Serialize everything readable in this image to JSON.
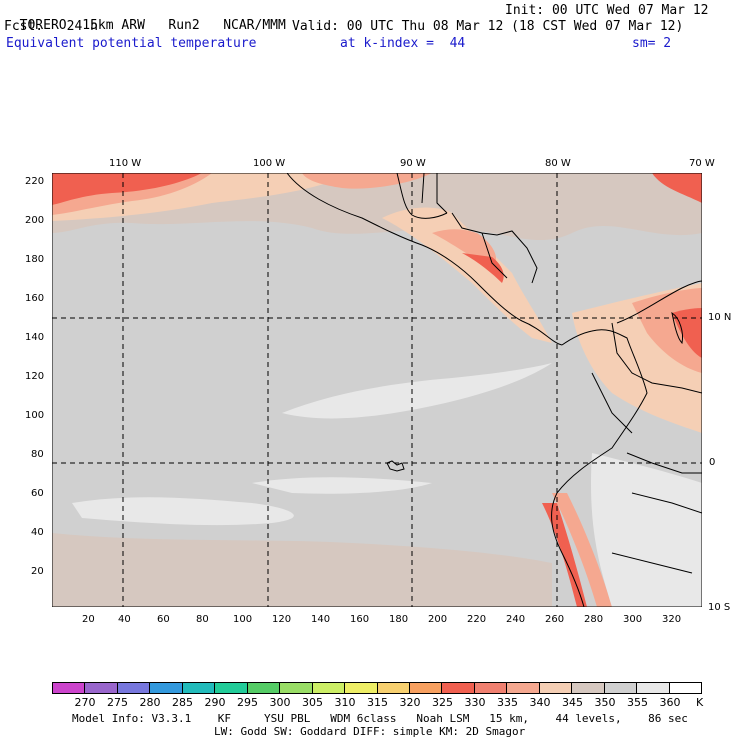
{
  "header": {
    "model": "TORERO",
    "resolution": "15km ARW",
    "run": "Run2",
    "org": "NCAR/MMM",
    "init": "Init: 00 UTC Wed 07 Mar 12",
    "fcst_label": "Fcst.",
    "fcst_value": "24 h",
    "valid": "Valid: 00 UTC Thu 08 Mar 12 (18 CST Wed 07 Mar 12)",
    "field": "Equivalent potential temperature",
    "kindex": "at k-index =  44",
    "sm": "sm= 2"
  },
  "map": {
    "top_lon_labels": [
      "110 W",
      "100 W",
      "90 W",
      "80 W",
      "70 W"
    ],
    "right_lat_labels": [
      "10 N",
      "0",
      "10 S"
    ],
    "y_ticks": [
      "220",
      "200",
      "180",
      "160",
      "140",
      "120",
      "100",
      "80",
      "60",
      "40",
      "20"
    ],
    "x_ticks": [
      "20",
      "40",
      "60",
      "80",
      "100",
      "120",
      "140",
      "160",
      "180",
      "200",
      "220",
      "240",
      "260",
      "280",
      "300",
      "320"
    ]
  },
  "colorbar": {
    "labels": [
      "270",
      "275",
      "280",
      "285",
      "290",
      "295",
      "300",
      "305",
      "310",
      "315",
      "320",
      "325",
      "330",
      "335",
      "340",
      "345",
      "350",
      "355",
      "360",
      "K"
    ],
    "colors": [
      "#cc44cc",
      "#9966cc",
      "#7777dd",
      "#3399dd",
      "#22bbbb",
      "#22cc99",
      "#55cc66",
      "#99dd66",
      "#ccee66",
      "#eeee66",
      "#f7d070",
      "#f7a060",
      "#f06050",
      "#f08070",
      "#f5a890",
      "#f5cfb5",
      "#d6c8c0",
      "#d0d0d0",
      "#e8e8e8",
      "#ffffff"
    ]
  },
  "footer": {
    "line1": "Model Info: V3.3.1    KF     YSU PBL   WDM 6class   Noah LSM   15 km,    44 levels,    86 sec",
    "line2": "LW: Godd SW: Goddard DIFF: simple KM: 2D Smagor"
  }
}
